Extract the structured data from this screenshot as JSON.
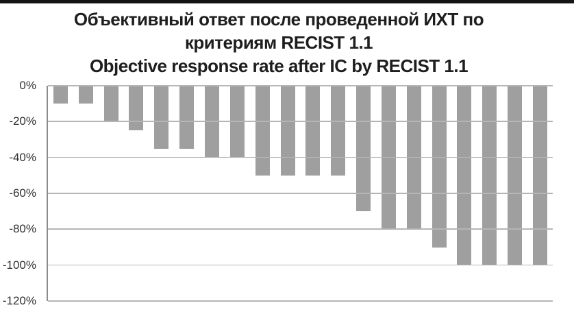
{
  "chart_data": {
    "type": "bar",
    "title": "Объективный ответ после проведенной ИХТ по критериям RECIST 1.1 / Objective response rate after IC by RECIST 1.1",
    "title_lines": [
      "Объективный ответ после проведенной ИХТ по",
      "критериям RECIST 1.1",
      "Objective response rate after IC by RECIST 1.1"
    ],
    "values": [
      -10,
      -10,
      -20,
      -25,
      -35,
      -35,
      -40,
      -40,
      -50,
      -50,
      -50,
      -50,
      -70,
      -80,
      -80,
      -90,
      -100,
      -100,
      -100,
      -100
    ],
    "unit": "%",
    "xlabel": "",
    "ylabel": "",
    "ylim": [
      0,
      -120
    ],
    "y_ticks": [
      "0%",
      "-20%",
      "-40%",
      "-60%",
      "-80%",
      "-100%",
      "-120%"
    ],
    "grid": true,
    "legend": false,
    "bar_color": "#9f9f9f",
    "gridline_color": "#b5b5b5",
    "axis_color": "#8c8c8c",
    "title_color": "#1e1e1e",
    "tick_color": "#303030",
    "top_border_color": "#141414"
  }
}
